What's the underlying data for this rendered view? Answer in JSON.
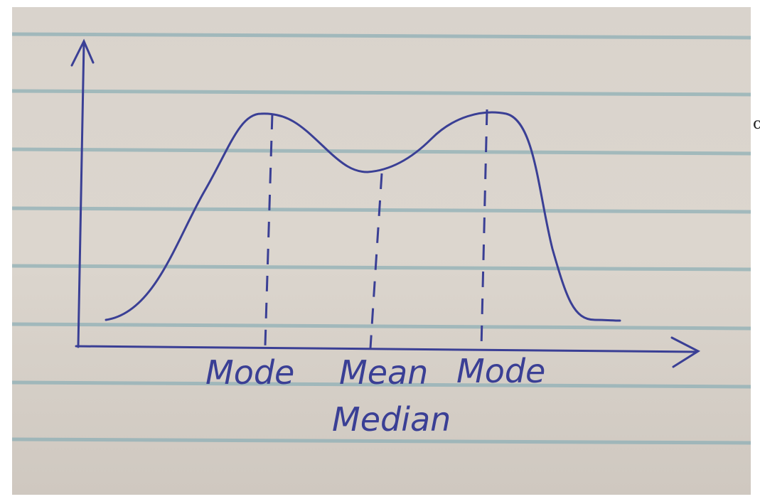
{
  "diagram": {
    "labels": {
      "mode_left": "Mode",
      "mean": "Mean",
      "median": "Median",
      "mode_right": "Mode"
    },
    "edge_text": "c",
    "colors": {
      "ink": "#3a3f95",
      "rule_line": "#8fb0b6",
      "paper": "#d9d3cc"
    }
  }
}
